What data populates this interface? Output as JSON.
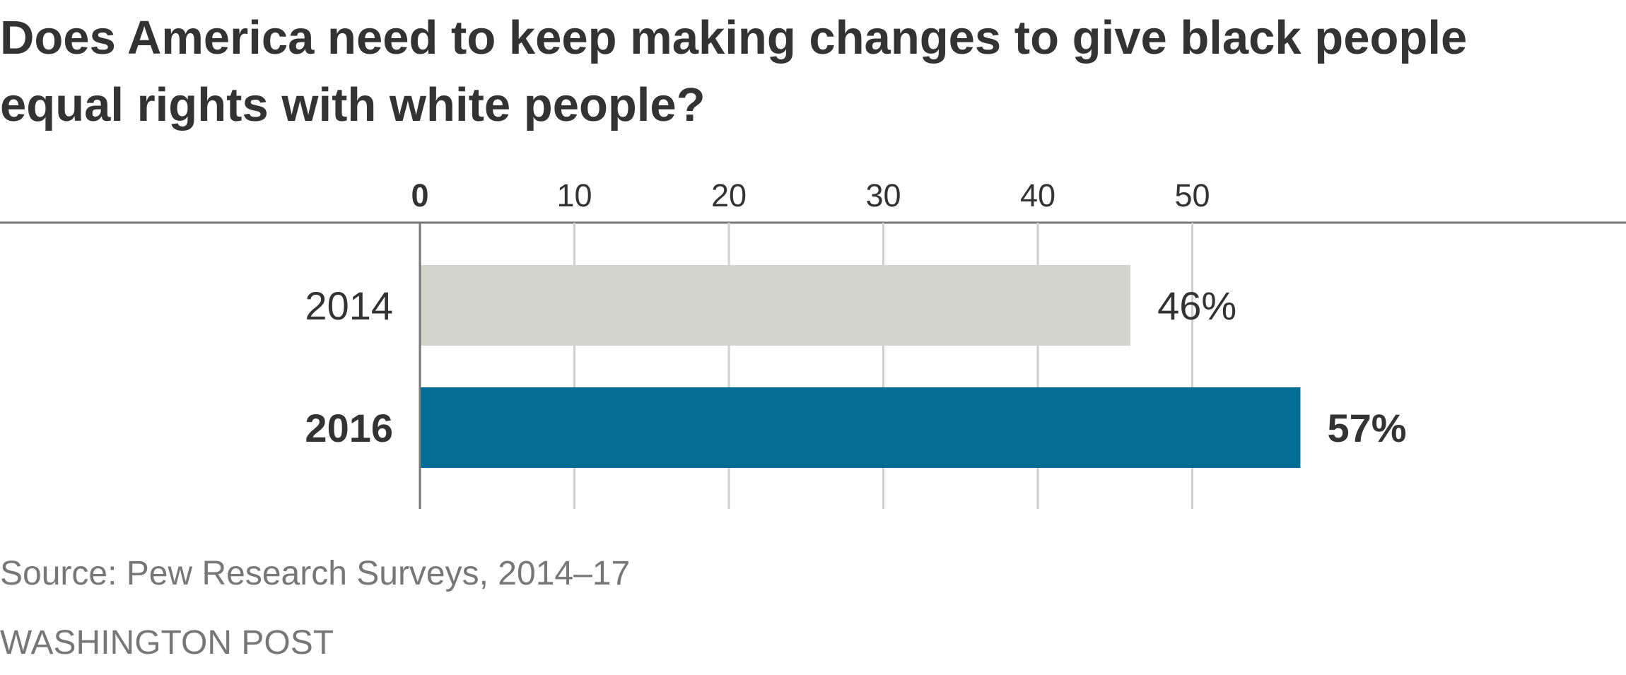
{
  "chart_data": {
    "type": "bar",
    "orientation": "horizontal",
    "title": "Does America need to keep making changes to give black people equal rights with white people?",
    "categories": [
      "2014",
      "2016"
    ],
    "values": [
      46,
      57
    ],
    "value_labels": [
      "46%",
      "57%"
    ],
    "highlighted": [
      false,
      true
    ],
    "xlim": [
      0,
      60
    ],
    "xticks": [
      0,
      10,
      20,
      30,
      40,
      50
    ],
    "xtick_labels": [
      "0",
      "10",
      "20",
      "30",
      "40",
      "50"
    ],
    "grid": true,
    "colors": {
      "default_bar": "#d3d4ce",
      "highlight_bar": "#046d94",
      "gridline": "#cfcfcf",
      "axis": "#777777"
    }
  },
  "source": "Source: Pew Research Surveys, 2014–17",
  "credit": "WASHINGTON POST"
}
